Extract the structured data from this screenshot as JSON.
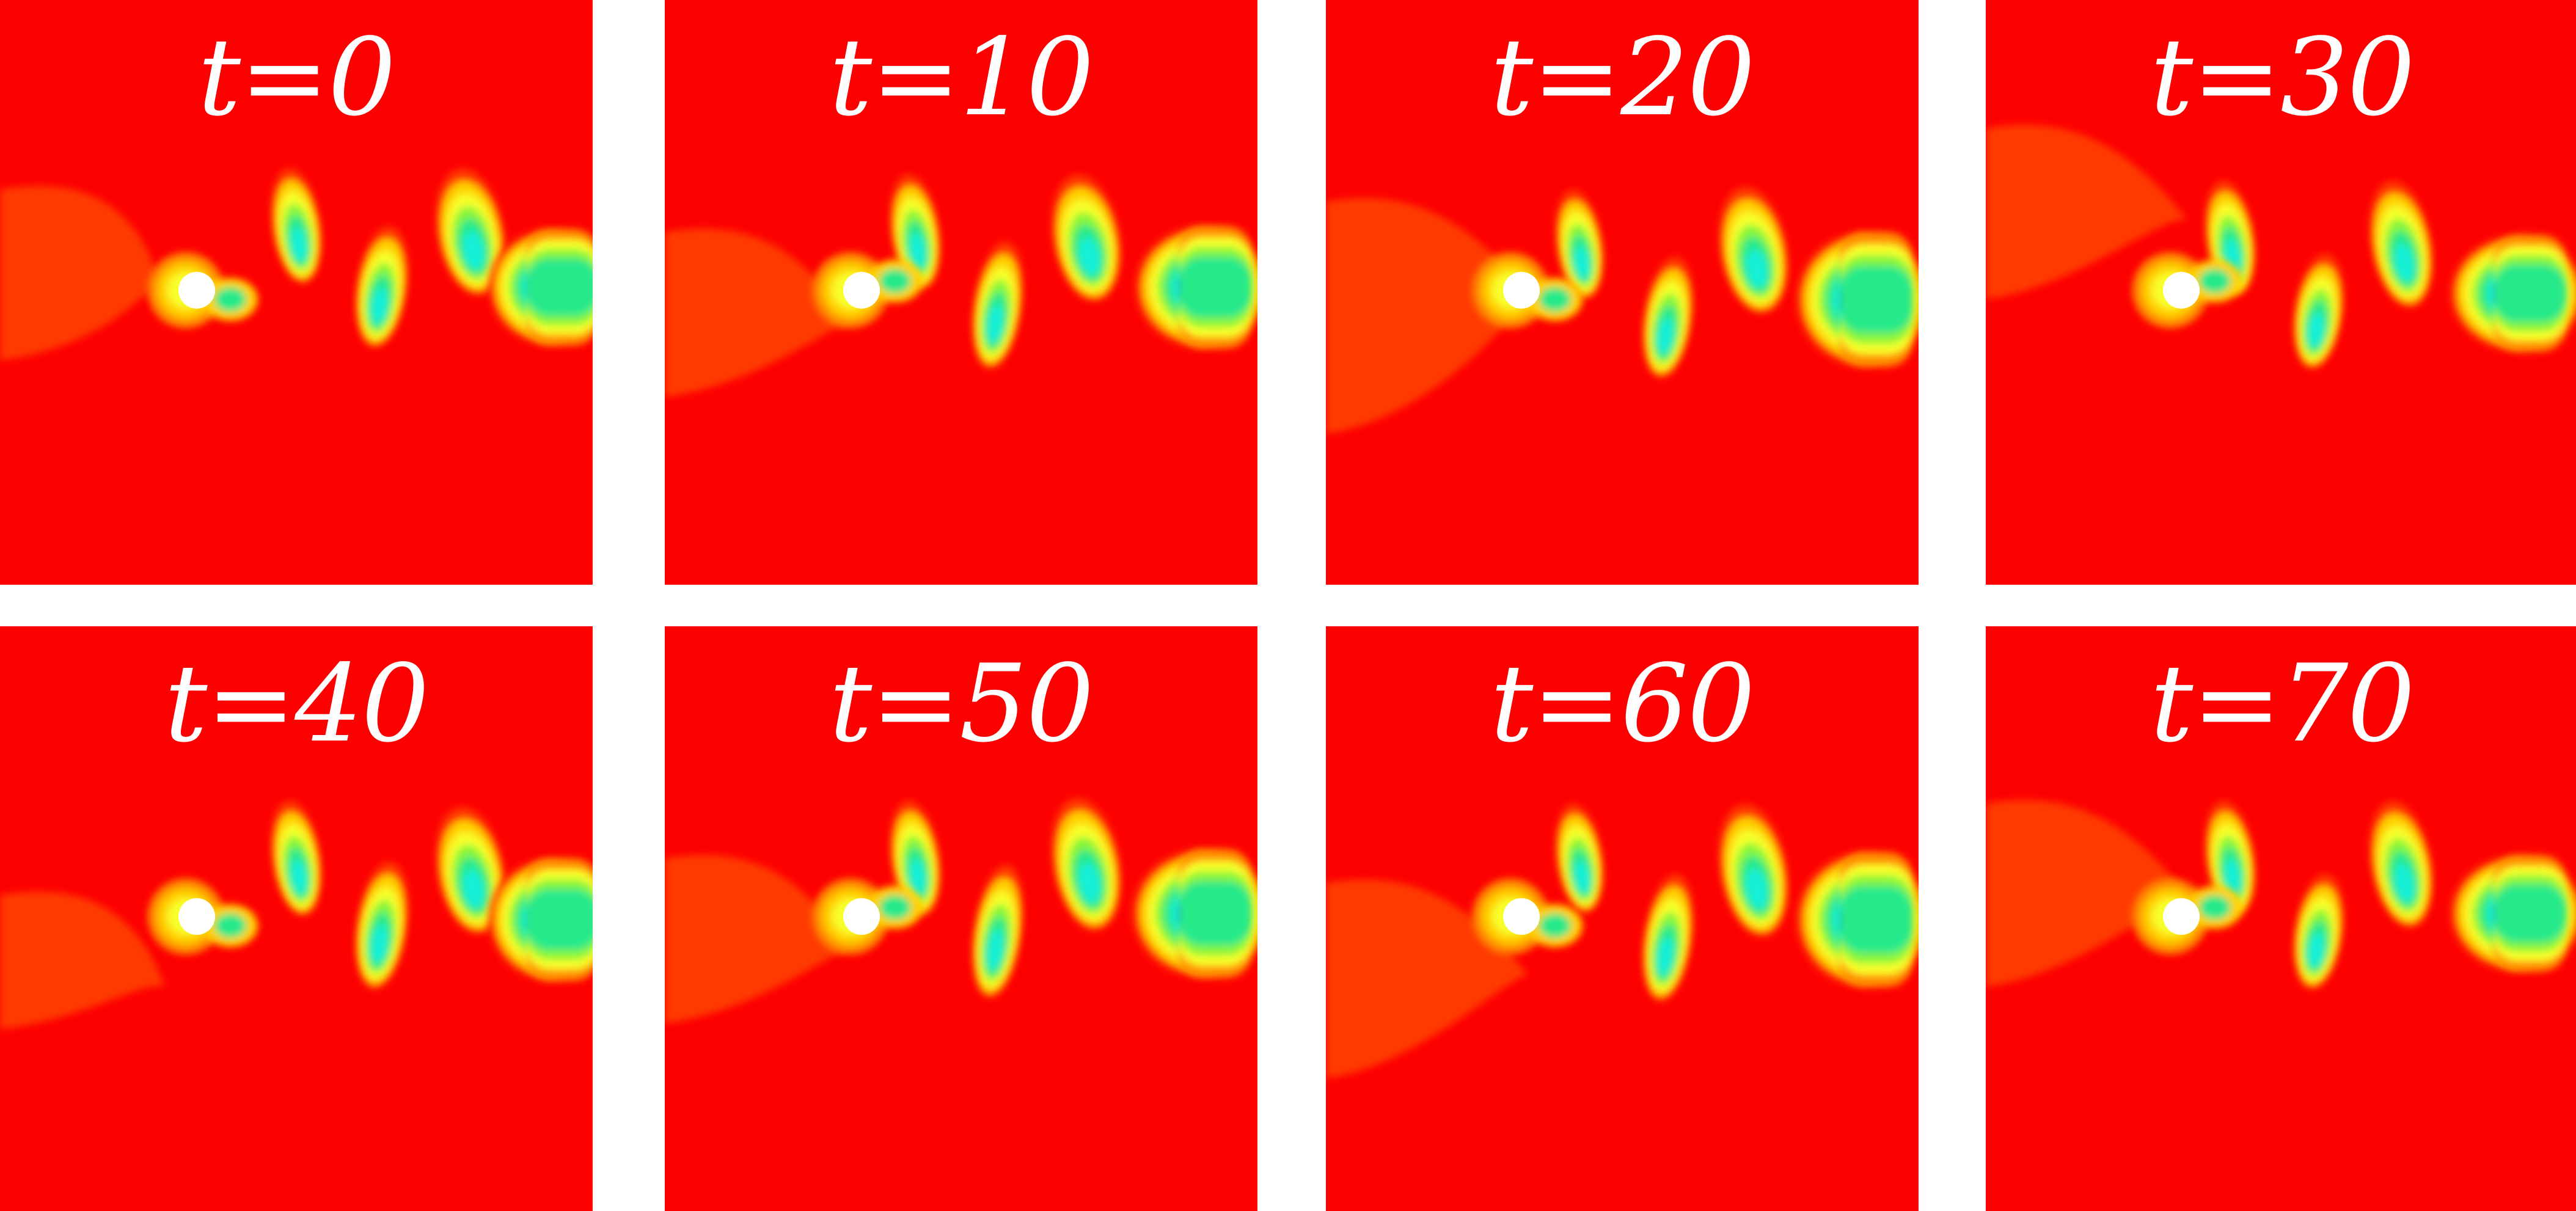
{
  "figure": {
    "colors": {
      "background": "#ffffff",
      "field": "#fd0000",
      "level_1": "#ff3a00",
      "level_2": "#ff8c00",
      "level_3": "#ffd000",
      "level_4": "#f7ff2a",
      "level_5": "#88f53a",
      "level_6": "#27e98a",
      "level_7": "#13f0d8",
      "level_8": "#1a7bff",
      "cylinder": "#ffffff"
    },
    "panels": [
      {
        "label": "t=0"
      },
      {
        "label": "t=10"
      },
      {
        "label": "t=20"
      },
      {
        "label": "t=30"
      },
      {
        "label": "t=40"
      },
      {
        "label": "t=50"
      },
      {
        "label": "t=60"
      },
      {
        "label": "t=70"
      }
    ]
  }
}
